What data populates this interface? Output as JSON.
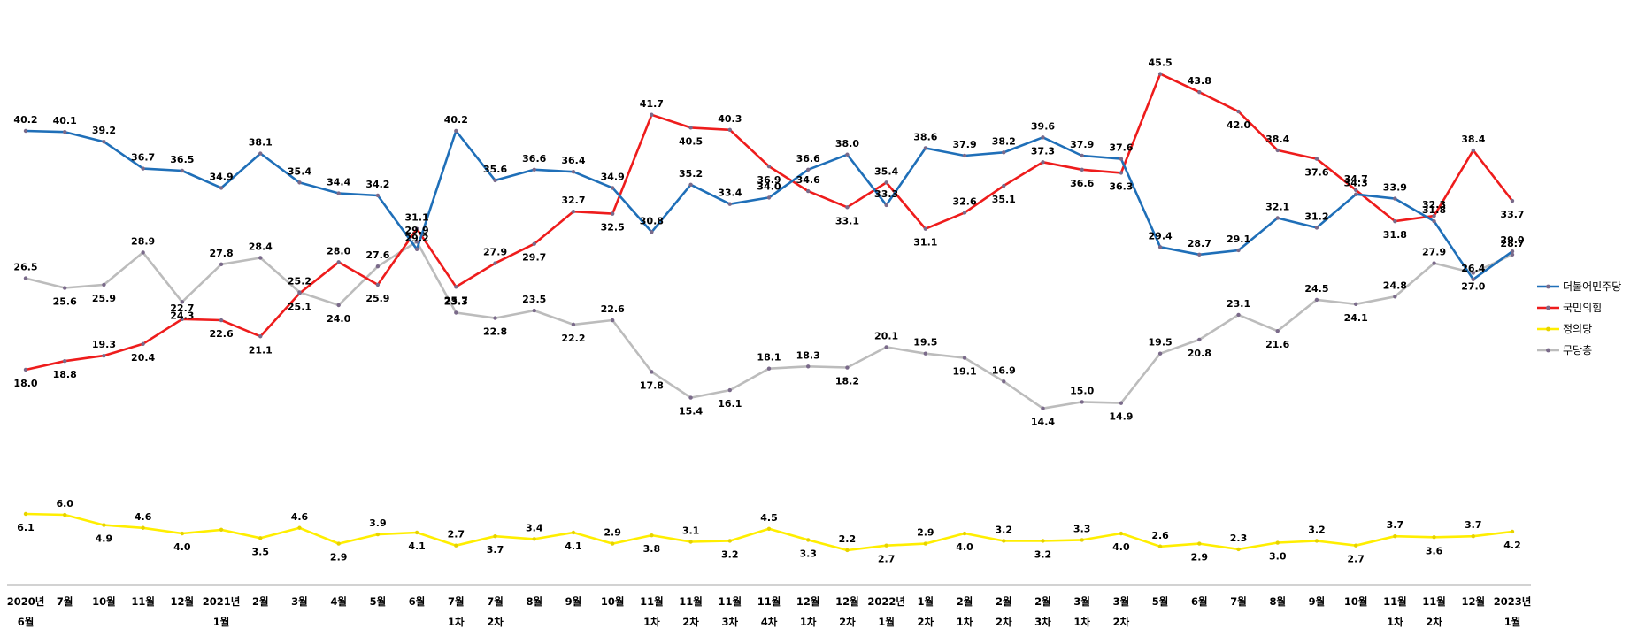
{
  "chart_data": {
    "type": "line",
    "categories": [
      [
        "2020년",
        "6월"
      ],
      [
        "7월"
      ],
      [
        "10월"
      ],
      [
        "11월"
      ],
      [
        "12월"
      ],
      [
        "2021년",
        "1월"
      ],
      [
        "2월"
      ],
      [
        "3월"
      ],
      [
        "4월"
      ],
      [
        "5월"
      ],
      [
        "6월"
      ],
      [
        "7월",
        "1차"
      ],
      [
        "7월",
        "2차"
      ],
      [
        "8월"
      ],
      [
        "9월"
      ],
      [
        "10월"
      ],
      [
        "11월",
        "1차"
      ],
      [
        "11월",
        "2차"
      ],
      [
        "11월",
        "3차"
      ],
      [
        "11월",
        "4차"
      ],
      [
        "12월",
        "1차"
      ],
      [
        "12월",
        "2차"
      ],
      [
        "2022년",
        "1월"
      ],
      [
        "1월",
        "2차"
      ],
      [
        "2월",
        "1차"
      ],
      [
        "2월",
        "2차"
      ],
      [
        "2월",
        "3차"
      ],
      [
        "3월",
        "1차"
      ],
      [
        "3월",
        "2차"
      ],
      [
        "5월"
      ],
      [
        "6월"
      ],
      [
        "7월"
      ],
      [
        "8월"
      ],
      [
        "9월"
      ],
      [
        "10월"
      ],
      [
        "11월",
        "1차"
      ],
      [
        "11월",
        "2차"
      ],
      [
        "12월"
      ],
      [
        "2023년",
        "1월"
      ]
    ],
    "series": [
      {
        "name": "더불어민주당",
        "color": "#1f6fb8",
        "labels": "above",
        "values": [
          40.2,
          40.1,
          39.2,
          36.7,
          36.5,
          34.9,
          38.1,
          35.4,
          34.4,
          34.2,
          29.2,
          40.2,
          35.6,
          36.6,
          36.4,
          34.9,
          30.8,
          35.2,
          33.4,
          34.0,
          36.6,
          38.0,
          33.3,
          38.6,
          37.9,
          38.2,
          39.6,
          37.9,
          37.6,
          29.4,
          28.7,
          29.1,
          32.1,
          31.2,
          34.3,
          33.9,
          31.8,
          26.4,
          29.0
        ]
      },
      {
        "name": "국민의힘",
        "color": "#ee1c1c",
        "labels": "mixed",
        "values": [
          18.0,
          18.8,
          19.3,
          20.4,
          22.7,
          22.6,
          21.1,
          25.1,
          28.0,
          25.9,
          31.1,
          25.7,
          27.9,
          29.7,
          32.7,
          32.5,
          41.7,
          40.5,
          40.3,
          36.9,
          34.6,
          33.1,
          35.4,
          31.1,
          32.6,
          35.1,
          37.3,
          36.6,
          36.3,
          45.5,
          43.8,
          42.0,
          38.4,
          37.6,
          34.7,
          31.8,
          32.3,
          38.4,
          33.7
        ]
      },
      {
        "name": "정의당",
        "color": "#ffee00",
        "labels": "mixed",
        "values": [
          6.1,
          6.0,
          4.9,
          4.6,
          4.0,
          4.4,
          3.5,
          4.6,
          2.9,
          3.9,
          4.1,
          2.7,
          3.7,
          3.4,
          4.1,
          2.9,
          3.8,
          3.1,
          3.2,
          4.5,
          3.3,
          2.2,
          2.7,
          2.9,
          4.0,
          3.2,
          3.2,
          3.3,
          4.0,
          2.6,
          2.9,
          2.3,
          3.0,
          3.2,
          2.7,
          3.7,
          3.6,
          3.7,
          4.2
        ]
      },
      {
        "name": "무당층",
        "color": "#bcbcbc",
        "labels": "mixed",
        "values": [
          26.5,
          25.6,
          25.9,
          28.9,
          24.3,
          27.8,
          28.4,
          25.2,
          24.0,
          27.6,
          29.9,
          23.3,
          22.8,
          23.5,
          22.2,
          22.6,
          17.8,
          15.4,
          16.1,
          18.1,
          18.3,
          18.2,
          20.1,
          19.5,
          19.1,
          16.9,
          14.4,
          15.0,
          14.9,
          19.5,
          20.8,
          23.1,
          21.6,
          24.5,
          24.1,
          24.8,
          27.9,
          27.0,
          28.7
        ]
      }
    ],
    "legend_position": "right",
    "grid": false
  },
  "label_text": {
    "democratic": [
      "40.2",
      "40.1",
      "39.2",
      "36.7",
      "36.5",
      "34.9",
      "38.1",
      "35.4",
      "34.4",
      "34.2",
      "29.2",
      "40.2",
      "35.6",
      "36.6",
      "36.4",
      "34.9",
      "30.8",
      "35.2",
      "33.4",
      "34.0",
      "36.6",
      "38.0",
      "33.3",
      "38.6",
      "37.9",
      "38.2",
      "39.6",
      "37.9",
      "37.6",
      "29.4",
      "28.7",
      "29.1",
      "32.1",
      "31.2",
      "34.3",
      "33.9",
      "31.8",
      "26.4",
      "29.0"
    ],
    "ppp": [
      "18.0",
      "18.8",
      "19.3",
      "20.4",
      "22.7",
      "22.6",
      "21.1",
      "25.1",
      "28.0",
      "25.9",
      "31.1",
      "25.7",
      "27.9",
      "29.7",
      "32.7",
      "32.5",
      "41.7",
      "40.5",
      "40.3",
      "36.9",
      "34.6",
      "33.1",
      "35.4",
      "31.1",
      "32.6",
      "35.1",
      "37.3",
      "36.6",
      "36.3",
      "45.5",
      "43.8",
      "42.0",
      "38.4",
      "37.6",
      "34.7",
      "31.8",
      "32.3",
      "38.4",
      "33.7"
    ],
    "justice": [
      "6.1",
      "6.0",
      "4.9",
      "4.6",
      "4.0",
      "",
      "3.5",
      "4.6",
      "2.9",
      "3.9",
      "4.1",
      "2.7",
      "3.7",
      "3.4",
      "4.1",
      "2.9",
      "3.8",
      "3.1",
      "3.2",
      "4.5",
      "3.3",
      "2.2",
      "2.7",
      "2.9",
      "4.0",
      "3.2",
      "3.2",
      "3.3",
      "4.0",
      "2.6",
      "2.9",
      "2.3",
      "3.0",
      "3.2",
      "2.7",
      "3.7",
      "3.6",
      "3.7",
      "4.2"
    ],
    "independent": [
      "26.5",
      "25.6",
      "25.9",
      "28.9",
      "24.3",
      "27.8",
      "28.4",
      "25.2",
      "24.0",
      "27.6",
      "29.9",
      "23.3",
      "22.8",
      "23.5",
      "22.2",
      "22.6",
      "17.8",
      "15.4",
      "16.1",
      "18.1",
      "18.3",
      "18.2",
      "20.1",
      "19.5",
      "19.1",
      "16.9",
      "14.4",
      "15.0",
      "14.9",
      "19.5",
      "20.8",
      "23.1",
      "21.6",
      "24.5",
      "24.1",
      "24.8",
      "27.9",
      "27.0",
      "28.7"
    ]
  }
}
